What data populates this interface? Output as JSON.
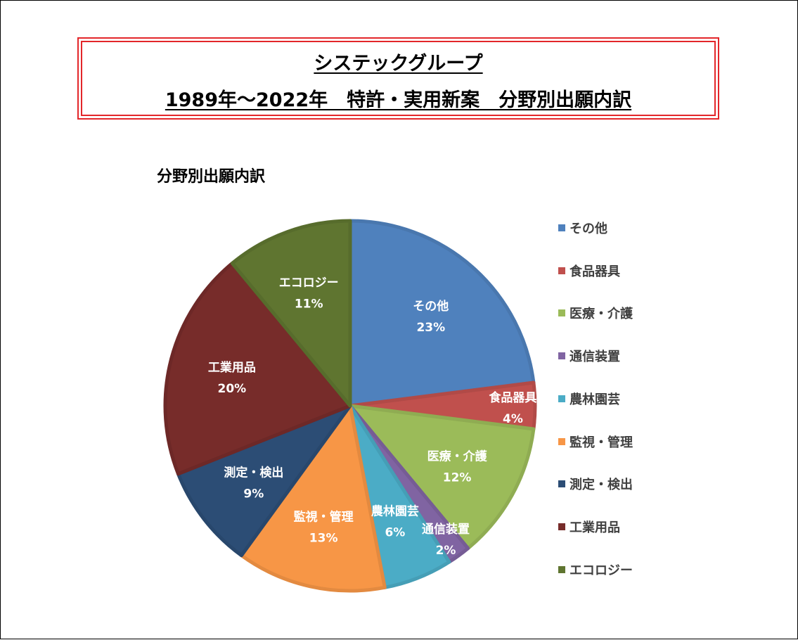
{
  "header": {
    "title_line1": "システックグループ",
    "title_line2": "1989年～2022年　特許・実用新案　分野別出願内訳"
  },
  "chart_data": {
    "type": "pie",
    "title": "分野別出願内訳",
    "legend_position": "right",
    "label_color": "#ffffff",
    "slices": [
      {
        "label": "その他",
        "value": 23,
        "value_label": "23%",
        "color": "#4f81bd"
      },
      {
        "label": "食品器具",
        "value": 4,
        "value_label": "4%",
        "color": "#c0504d"
      },
      {
        "label": "医療・介護",
        "value": 12,
        "value_label": "12%",
        "color": "#9bbb59"
      },
      {
        "label": "通信装置",
        "value": 2,
        "value_label": "2%",
        "color": "#8064a2"
      },
      {
        "label": "農林園芸",
        "value": 6,
        "value_label": "6%",
        "color": "#4bacc6"
      },
      {
        "label": "監視・管理",
        "value": 13,
        "value_label": "13%",
        "color": "#f79646"
      },
      {
        "label": "測定・検出",
        "value": 9,
        "value_label": "9%",
        "color": "#2c4d75"
      },
      {
        "label": "工業用品",
        "value": 20,
        "value_label": "20%",
        "color": "#772c2a"
      },
      {
        "label": "エコロジー",
        "value": 11,
        "value_label": "11%",
        "color": "#5f7530"
      }
    ]
  }
}
